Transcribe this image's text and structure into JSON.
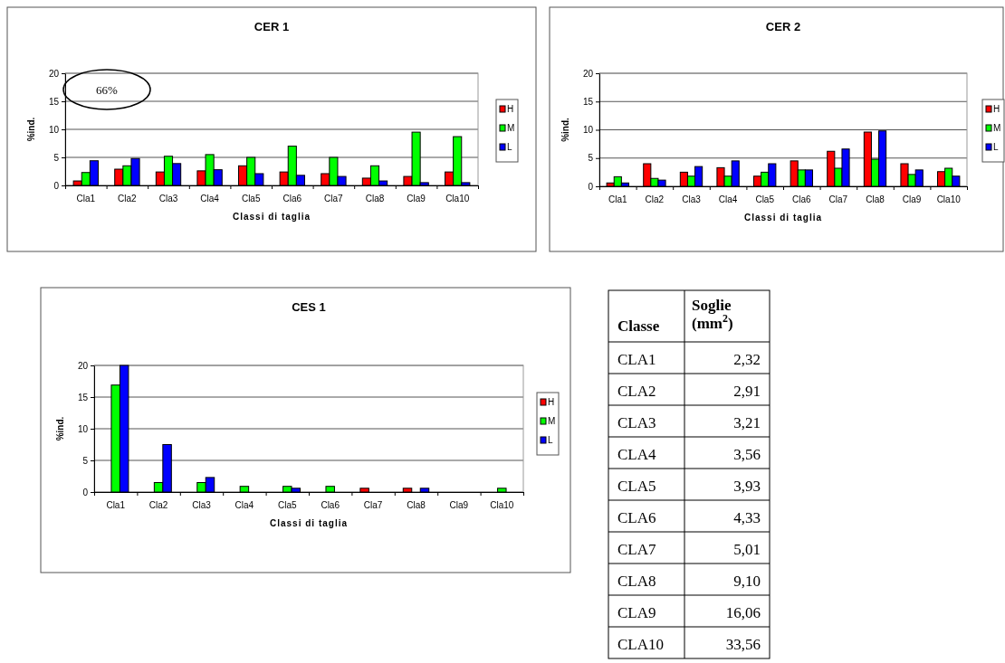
{
  "chart_data": [
    {
      "type": "bar",
      "title": "CER 1",
      "xlabel": "Classi di taglia",
      "ylabel": "%ind.",
      "categories": [
        "Cla1",
        "Cla2",
        "Cla3",
        "Cla4",
        "Cla5",
        "Cla6",
        "Cla7",
        "Cla8",
        "Cla9",
        "Cla10"
      ],
      "series": [
        {
          "name": "H",
          "color": "#ff0000",
          "values": [
            0.8,
            2.9,
            2.4,
            2.6,
            3.5,
            2.4,
            2.1,
            1.3,
            1.6,
            2.4
          ]
        },
        {
          "name": "M",
          "color": "#00ff00",
          "values": [
            2.3,
            3.5,
            5.2,
            5.5,
            5.0,
            7.0,
            5.0,
            3.5,
            9.5,
            8.7
          ]
        },
        {
          "name": "L",
          "color": "#0000ff",
          "values": [
            4.4,
            4.8,
            3.9,
            2.8,
            2.1,
            1.8,
            1.6,
            0.8,
            0.5,
            0.5
          ]
        }
      ],
      "ylim": [
        0,
        20
      ],
      "yticks": [
        0,
        5,
        10,
        15,
        20
      ],
      "grid": "y",
      "legend": "right",
      "annotations": [
        "66%"
      ]
    },
    {
      "type": "bar",
      "title": "CER 2",
      "xlabel": "Classi di taglia",
      "ylabel": "%ind.",
      "categories": [
        "Cla1",
        "Cla2",
        "Cla3",
        "Cla4",
        "Cla5",
        "Cla6",
        "Cla7",
        "Cla8",
        "Cla9",
        "Cla10"
      ],
      "series": [
        {
          "name": "H",
          "color": "#ff0000",
          "values": [
            0.6,
            4.0,
            2.5,
            3.3,
            1.8,
            4.5,
            6.2,
            9.6,
            4.0,
            2.6
          ]
        },
        {
          "name": "M",
          "color": "#00ff00",
          "values": [
            1.7,
            1.4,
            1.8,
            1.8,
            2.5,
            2.9,
            3.2,
            4.8,
            2.1,
            3.2
          ]
        },
        {
          "name": "L",
          "color": "#0000ff",
          "values": [
            0.6,
            1.1,
            3.5,
            4.5,
            4.0,
            2.9,
            6.6,
            9.8,
            2.9,
            1.8
          ]
        }
      ],
      "ylim": [
        0,
        20
      ],
      "yticks": [
        0,
        5,
        10,
        15,
        20
      ],
      "grid": "y",
      "legend": "right"
    },
    {
      "type": "bar",
      "title": "CES 1",
      "xlabel": "Classi di taglia",
      "ylabel": "%ind.",
      "categories": [
        "Cla1",
        "Cla2",
        "Cla3",
        "Cla4",
        "Cla5",
        "Cla6",
        "Cla7",
        "Cla8",
        "Cla9",
        "Cla10"
      ],
      "series": [
        {
          "name": "H",
          "color": "#ff0000",
          "values": [
            0,
            0,
            0,
            0,
            0,
            0,
            0.6,
            0.6,
            0,
            0
          ]
        },
        {
          "name": "M",
          "color": "#00ff00",
          "values": [
            16.9,
            1.5,
            1.5,
            0.9,
            0.9,
            0.9,
            0,
            0,
            0,
            0.6
          ]
        },
        {
          "name": "L",
          "color": "#0000ff",
          "values": [
            20,
            7.5,
            2.3,
            0,
            0.6,
            0,
            0,
            0.6,
            0,
            0
          ]
        }
      ],
      "ylim": [
        0,
        20
      ],
      "yticks": [
        0,
        5,
        10,
        15,
        20
      ],
      "grid": "y",
      "legend": "right"
    },
    {
      "type": "other",
      "xlabel": "Classe",
      "ylabel": "Soglie (mm$^{2}$)",
      "categories": [
        "CLA1",
        "CLA2",
        "CLA3",
        "CLA4",
        "CLA5",
        "CLA6",
        "CLA7",
        "CLA8",
        "CLA9",
        "CLA10"
      ],
      "value_labels": [
        "2,32",
        "2,91",
        "3,21",
        "3,56",
        "3,93",
        "4,33",
        "5,01",
        "9,10",
        "16,06",
        "33,56"
      ]
    }
  ]
}
